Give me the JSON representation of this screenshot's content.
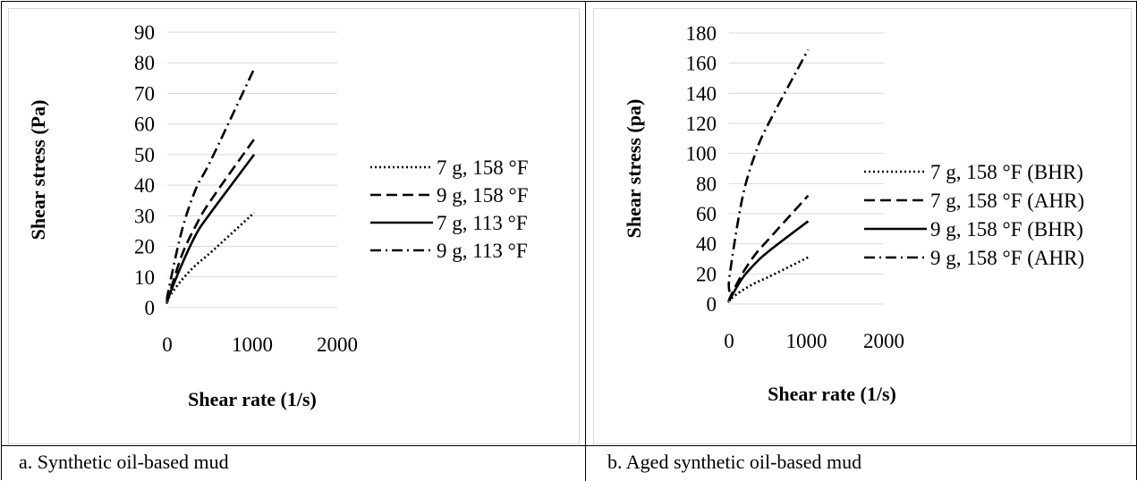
{
  "chart_data": [
    {
      "type": "line",
      "caption": "a.   Synthetic oil-based mud",
      "xlabel": "Shear rate (1/s)",
      "ylabel": "Shear stress (Pa)",
      "xlim": [
        0,
        2000
      ],
      "ylim": [
        0,
        90
      ],
      "xticks": [
        0,
        1000,
        2000
      ],
      "yticks": [
        0,
        10,
        20,
        30,
        40,
        50,
        60,
        70,
        80,
        90
      ],
      "grid": true,
      "legend_position": "right",
      "series": [
        {
          "name": "7 g, 158 °F",
          "dash": "dotted",
          "x": [
            5,
            10,
            170,
            340,
            511,
            1022
          ],
          "y": [
            2,
            3,
            9,
            14,
            18,
            31
          ]
        },
        {
          "name": "9 g, 158 °F",
          "dash": "dashed",
          "x": [
            5,
            10,
            170,
            340,
            511,
            1022
          ],
          "y": [
            2,
            3,
            17,
            27,
            35,
            55
          ]
        },
        {
          "name": "7 g, 113 °F",
          "dash": "solid",
          "x": [
            5,
            10,
            170,
            340,
            511,
            1022
          ],
          "y": [
            2,
            3,
            14,
            24,
            31,
            50
          ]
        },
        {
          "name": "9 g, 113 °F",
          "dash": "dashdot",
          "x": [
            5,
            10,
            170,
            340,
            511,
            1022
          ],
          "y": [
            3,
            5,
            25,
            39,
            48,
            78
          ]
        }
      ]
    },
    {
      "type": "line",
      "caption": "b.   Aged synthetic oil-based mud",
      "xlabel": "Shear rate (1/s)",
      "ylabel": "Shear stress (pa)",
      "xlim": [
        0,
        2000
      ],
      "ylim": [
        0,
        180
      ],
      "xticks": [
        0,
        1000,
        2000
      ],
      "yticks": [
        0,
        20,
        40,
        60,
        80,
        100,
        120,
        140,
        160,
        180
      ],
      "grid": true,
      "legend_position": "right",
      "series": [
        {
          "name": "7 g, 158 °F (BHR)",
          "dash": "dotted",
          "x": [
            5,
            10,
            170,
            340,
            511,
            1022
          ],
          "y": [
            2,
            3,
            9,
            14,
            18,
            31
          ]
        },
        {
          "name": "7 g, 158 °F (AHR)",
          "dash": "dashed",
          "x": [
            5,
            10,
            170,
            340,
            511,
            1022
          ],
          "y": [
            2,
            4,
            20,
            33,
            43,
            72
          ]
        },
        {
          "name": "9 g, 158 °F (BHR)",
          "dash": "solid",
          "x": [
            5,
            10,
            170,
            340,
            511,
            1022
          ],
          "y": [
            2,
            3,
            17,
            27,
            35,
            55
          ]
        },
        {
          "name": "9 g, 158 °F (AHR)",
          "dash": "dashdot",
          "x": [
            5,
            10,
            170,
            340,
            511,
            1022
          ],
          "y": [
            8,
            20,
            70,
            100,
            120,
            169
          ]
        }
      ]
    }
  ]
}
